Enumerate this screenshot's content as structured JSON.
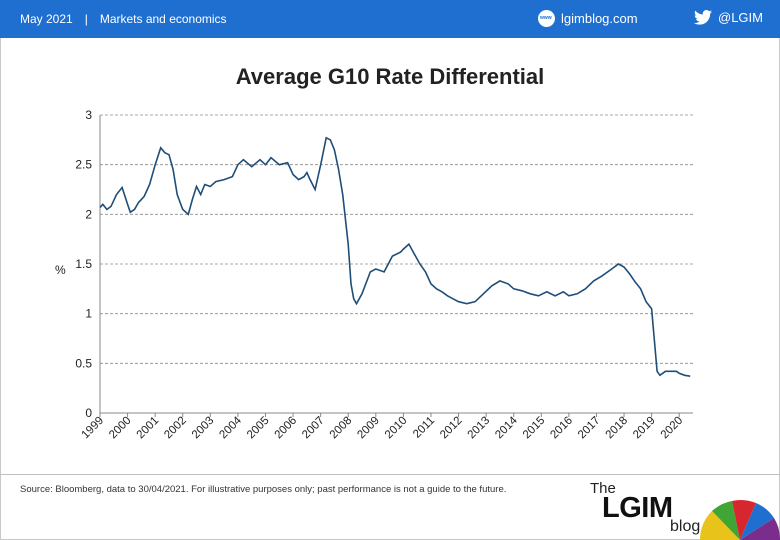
{
  "header": {
    "date": "May 2021",
    "separator": "|",
    "section": "Markets and economics",
    "site": "lgimblog.com",
    "site_icon": "globe-icon",
    "handle": "@LGIM",
    "handle_icon": "twitter-icon",
    "bar_color": "#1f6fd1"
  },
  "chart_data": {
    "type": "line",
    "title": "Average G10 Rate Differential",
    "ylabel": "%",
    "ylim": [
      0,
      3
    ],
    "yticks": [
      0,
      0.5,
      1,
      1.5,
      2,
      2.5,
      3
    ],
    "xlim": [
      1999,
      2020.5
    ],
    "xticks": [
      "1999",
      "2000",
      "2001",
      "2002",
      "2003",
      "2004",
      "2005",
      "2006",
      "2007",
      "2008",
      "2009",
      "2010",
      "2011",
      "2012",
      "2013",
      "2014",
      "2015",
      "2016",
      "2017",
      "2018",
      "2019",
      "2020"
    ],
    "grid": "horizontal dashed",
    "line_color": "#1f4e79",
    "series": [
      {
        "x": [
          1999.0,
          1999.1,
          1999.25,
          1999.4,
          1999.6,
          1999.8,
          2000.0,
          2000.1,
          2000.25,
          2000.4,
          2000.6,
          2000.8,
          2001.0,
          2001.2,
          2001.35,
          2001.5,
          2001.65,
          2001.8,
          2002.0,
          2002.2,
          2002.35,
          2002.5,
          2002.65,
          2002.8,
          2003.0,
          2003.2,
          2003.5,
          2003.8,
          2004.0,
          2004.2,
          2004.5,
          2004.8,
          2005.0,
          2005.2,
          2005.5,
          2005.8,
          2006.0,
          2006.2,
          2006.4,
          2006.5,
          2006.6,
          2006.8,
          2007.0,
          2007.2,
          2007.35,
          2007.5,
          2007.65,
          2007.8,
          2008.0,
          2008.1,
          2008.2,
          2008.3,
          2008.5,
          2008.8,
          2009.0,
          2009.3,
          2009.6,
          2009.9,
          2010.0,
          2010.2,
          2010.4,
          2010.6,
          2010.8,
          2011.0,
          2011.2,
          2011.4,
          2011.6,
          2011.8,
          2012.0,
          2012.3,
          2012.6,
          2012.9,
          2013.2,
          2013.5,
          2013.8,
          2014.0,
          2014.3,
          2014.6,
          2014.9,
          2015.2,
          2015.5,
          2015.8,
          2016.0,
          2016.3,
          2016.6,
          2016.9,
          2017.2,
          2017.5,
          2017.8,
          2018.0,
          2018.2,
          2018.4,
          2018.6,
          2018.8,
          2019.0,
          2019.2,
          2019.3,
          2019.4,
          2019.5,
          2019.7,
          2019.9,
          2020.0,
          2020.2,
          2020.4
        ],
        "y": [
          2.07,
          2.1,
          2.05,
          2.08,
          2.2,
          2.27,
          2.1,
          2.02,
          2.05,
          2.12,
          2.18,
          2.3,
          2.5,
          2.67,
          2.62,
          2.6,
          2.45,
          2.2,
          2.05,
          2.0,
          2.15,
          2.28,
          2.2,
          2.3,
          2.28,
          2.33,
          2.35,
          2.38,
          2.5,
          2.55,
          2.48,
          2.55,
          2.5,
          2.57,
          2.5,
          2.52,
          2.4,
          2.35,
          2.38,
          2.42,
          2.36,
          2.25,
          2.5,
          2.77,
          2.75,
          2.65,
          2.45,
          2.2,
          1.7,
          1.3,
          1.15,
          1.1,
          1.2,
          1.42,
          1.45,
          1.42,
          1.58,
          1.62,
          1.65,
          1.7,
          1.6,
          1.5,
          1.42,
          1.3,
          1.25,
          1.22,
          1.18,
          1.15,
          1.12,
          1.1,
          1.12,
          1.2,
          1.28,
          1.33,
          1.3,
          1.25,
          1.23,
          1.2,
          1.18,
          1.22,
          1.18,
          1.22,
          1.18,
          1.2,
          1.25,
          1.33,
          1.38,
          1.44,
          1.5,
          1.47,
          1.4,
          1.32,
          1.25,
          1.12,
          1.05,
          0.42,
          0.38,
          0.4,
          0.42,
          0.42,
          0.42,
          0.4,
          0.38,
          0.37
        ]
      }
    ]
  },
  "footer": {
    "source": "Source: Bloomberg, data to 30/04/2021. For illustrative purposes only; past performance is not a guide to the future.",
    "logo_the": "The",
    "logo_lgim": "LGIM",
    "logo_blog": "blog",
    "logo_icon": "umbrella-icon"
  }
}
